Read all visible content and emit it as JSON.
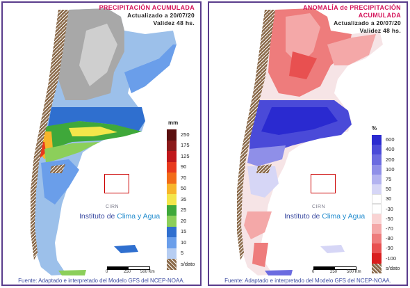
{
  "left": {
    "title": "PRECIPITACIÓN ACUMULADA",
    "updated": "Actualizado a 20/07/20",
    "validity": "Validez 48 hs.",
    "unit": "mm",
    "legend": [
      {
        "label": "250",
        "color": "#5a0f0f"
      },
      {
        "label": "175",
        "color": "#8b1a1a"
      },
      {
        "label": "125",
        "color": "#c0171a"
      },
      {
        "label": "90",
        "color": "#e8391d"
      },
      {
        "label": "70",
        "color": "#f26b18"
      },
      {
        "label": "50",
        "color": "#f7b52a"
      },
      {
        "label": "35",
        "color": "#f3e64a"
      },
      {
        "label": "25",
        "color": "#3fa83a"
      },
      {
        "label": "20",
        "color": "#8ccf5a"
      },
      {
        "label": "15",
        "color": "#2f6fcf"
      },
      {
        "label": "10",
        "color": "#6a9eea"
      },
      {
        "label": "5",
        "color": "#b6cdf2"
      },
      {
        "label": "s/dato",
        "color": "#8a6a4a"
      }
    ],
    "footer": "Fuente: Adaptado e interpretado del Modelo GFS del NCEP-NOAA."
  },
  "right": {
    "title": "ANOMALÍA de PRECIPITACIÓN ACUMULADA",
    "updated": "Actualizado a 20/07/20",
    "validity": "Validez 48 hs.",
    "unit": "%",
    "legend": [
      {
        "label": "600",
        "color": "#2a2ad0"
      },
      {
        "label": "400",
        "color": "#4a4ad8"
      },
      {
        "label": "200",
        "color": "#6b6be0"
      },
      {
        "label": "100",
        "color": "#8f8fe8"
      },
      {
        "label": "75",
        "color": "#b3b3f0"
      },
      {
        "label": "50",
        "color": "#d6d6f6"
      },
      {
        "label": "30",
        "color": "#ffffff"
      },
      {
        "label": "-30",
        "color": "#ffffff"
      },
      {
        "label": "-50",
        "color": "#f9d3d3"
      },
      {
        "label": "-70",
        "color": "#f4a8a8"
      },
      {
        "label": "-80",
        "color": "#ee7c7c"
      },
      {
        "label": "-90",
        "color": "#e85050"
      },
      {
        "label": "-100",
        "color": "#d91e1e"
      },
      {
        "label": "s/dato",
        "color": "#8a6a4a"
      }
    ],
    "footer": "Fuente: Adaptado e interpretado del Modelo GFS del NCEP-NOAA."
  },
  "logo": {
    "inta": "INTA",
    "cirn": "CIRN",
    "institute_a": "Instituto de ",
    "institute_b": "Clima y Agua"
  },
  "scale": {
    "l0": "0",
    "l1": "250",
    "l2": "500 Km"
  }
}
